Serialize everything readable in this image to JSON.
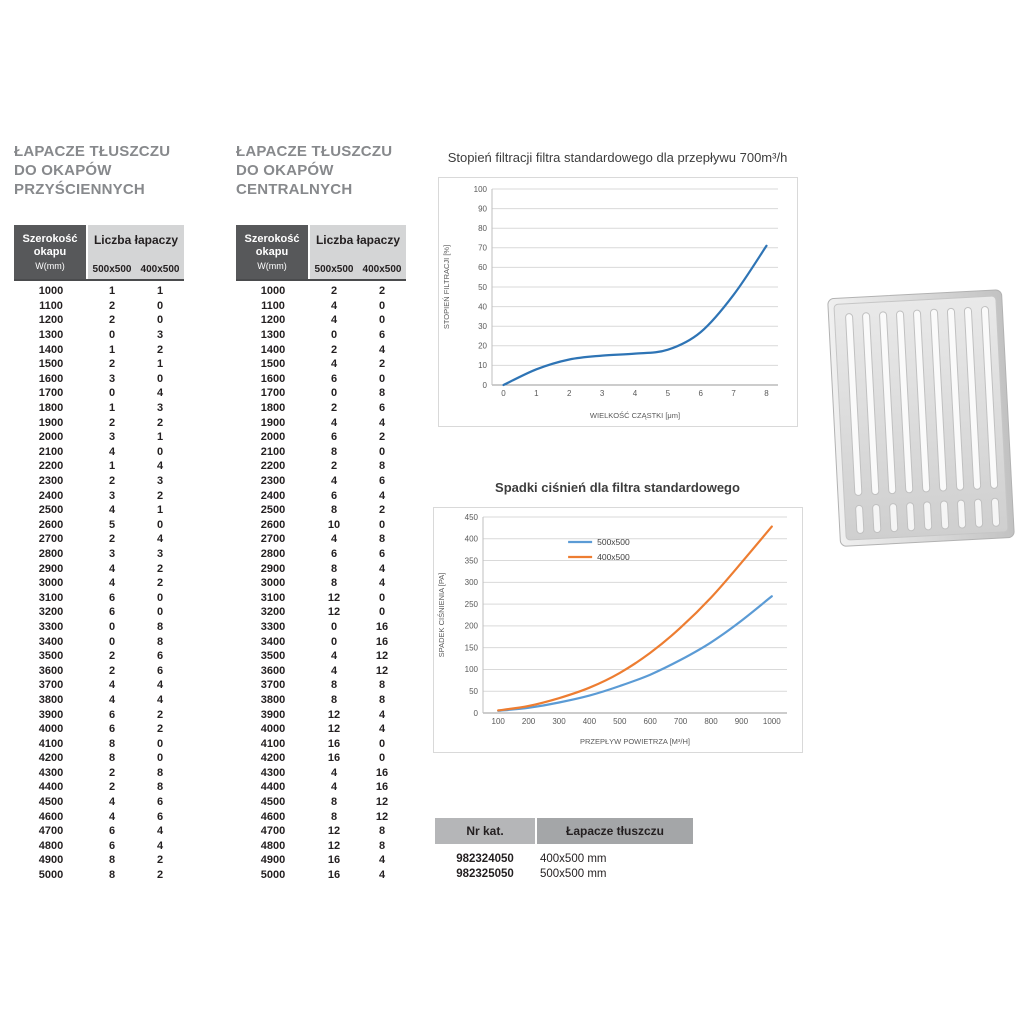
{
  "tables": {
    "wall": {
      "title_lines": [
        "ŁAPACZE TŁUSZCZU",
        "DO OKAPÓW",
        "PRZYŚCIENNYCH"
      ],
      "header": {
        "width_label": "Szerokość okapu",
        "width_unit": "W(mm)",
        "count_label": "Liczba łapaczy",
        "sub1": "500x500",
        "sub2": "400x500"
      },
      "rows": [
        [
          1000,
          1,
          1
        ],
        [
          1100,
          2,
          0
        ],
        [
          1200,
          2,
          0
        ],
        [
          1300,
          0,
          3
        ],
        [
          1400,
          1,
          2
        ],
        [
          1500,
          2,
          1
        ],
        [
          1600,
          3,
          0
        ],
        [
          1700,
          0,
          4
        ],
        [
          1800,
          1,
          3
        ],
        [
          1900,
          2,
          2
        ],
        [
          2000,
          3,
          1
        ],
        [
          2100,
          4,
          0
        ],
        [
          2200,
          1,
          4
        ],
        [
          2300,
          2,
          3
        ],
        [
          2400,
          3,
          2
        ],
        [
          2500,
          4,
          1
        ],
        [
          2600,
          5,
          0
        ],
        [
          2700,
          2,
          4
        ],
        [
          2800,
          3,
          3
        ],
        [
          2900,
          4,
          2
        ],
        [
          3000,
          4,
          2
        ],
        [
          3100,
          6,
          0
        ],
        [
          3200,
          6,
          0
        ],
        [
          3300,
          0,
          8
        ],
        [
          3400,
          0,
          8
        ],
        [
          3500,
          2,
          6
        ],
        [
          3600,
          2,
          6
        ],
        [
          3700,
          4,
          4
        ],
        [
          3800,
          4,
          4
        ],
        [
          3900,
          6,
          2
        ],
        [
          4000,
          6,
          2
        ],
        [
          4100,
          8,
          0
        ],
        [
          4200,
          8,
          0
        ],
        [
          4300,
          2,
          8
        ],
        [
          4400,
          2,
          8
        ],
        [
          4500,
          4,
          6
        ],
        [
          4600,
          4,
          6
        ],
        [
          4700,
          6,
          4
        ],
        [
          4800,
          6,
          4
        ],
        [
          4900,
          8,
          2
        ],
        [
          5000,
          8,
          2
        ]
      ]
    },
    "central": {
      "title_lines": [
        "ŁAPACZE TŁUSZCZU",
        "DO OKAPÓW",
        "CENTRALNYCH"
      ],
      "header": {
        "width_label": "Szerokość okapu",
        "width_unit": "W(mm)",
        "count_label": "Liczba łapaczy",
        "sub1": "500x500",
        "sub2": "400x500"
      },
      "rows": [
        [
          1000,
          2,
          2
        ],
        [
          1100,
          4,
          0
        ],
        [
          1200,
          4,
          0
        ],
        [
          1300,
          0,
          6
        ],
        [
          1400,
          2,
          4
        ],
        [
          1500,
          4,
          2
        ],
        [
          1600,
          6,
          0
        ],
        [
          1700,
          0,
          8
        ],
        [
          1800,
          2,
          6
        ],
        [
          1900,
          4,
          4
        ],
        [
          2000,
          6,
          2
        ],
        [
          2100,
          8,
          0
        ],
        [
          2200,
          2,
          8
        ],
        [
          2300,
          4,
          6
        ],
        [
          2400,
          6,
          4
        ],
        [
          2500,
          8,
          2
        ],
        [
          2600,
          10,
          0
        ],
        [
          2700,
          4,
          8
        ],
        [
          2800,
          6,
          6
        ],
        [
          2900,
          8,
          4
        ],
        [
          3000,
          8,
          4
        ],
        [
          3100,
          12,
          0
        ],
        [
          3200,
          12,
          0
        ],
        [
          3300,
          0,
          16
        ],
        [
          3400,
          0,
          16
        ],
        [
          3500,
          4,
          12
        ],
        [
          3600,
          4,
          12
        ],
        [
          3700,
          8,
          8
        ],
        [
          3800,
          8,
          8
        ],
        [
          3900,
          12,
          4
        ],
        [
          4000,
          12,
          4
        ],
        [
          4100,
          16,
          0
        ],
        [
          4200,
          16,
          0
        ],
        [
          4300,
          4,
          16
        ],
        [
          4400,
          4,
          16
        ],
        [
          4500,
          8,
          12
        ],
        [
          4600,
          8,
          12
        ],
        [
          4700,
          12,
          8
        ],
        [
          4800,
          12,
          8
        ],
        [
          4900,
          16,
          4
        ],
        [
          5000,
          16,
          4
        ]
      ]
    }
  },
  "chart_data": [
    {
      "type": "line",
      "title": "Stopień filtracji filtra standardowego dla przepływu 700m³/h",
      "xlabel": "WIELKOŚĆ CZĄSTKI [μm]",
      "ylabel": "STOPIEŃ FILTRACJI [%]",
      "x": [
        0,
        1,
        2,
        3,
        4,
        5,
        6,
        7,
        8
      ],
      "values": [
        0,
        8,
        13,
        15,
        16,
        18,
        27,
        46,
        71
      ],
      "color": "#2e74b5",
      "xlim": [
        0,
        8
      ],
      "ylim": [
        0,
        100
      ],
      "ytick": 10,
      "pad": 0.35,
      "grid": true,
      "legend": false
    },
    {
      "type": "line",
      "title": "Spadki ciśnień dla filtra standardowego",
      "xlabel": "PRZEPŁYW POWIETRZA [M³/H]",
      "ylabel": "SPADEK CIŚNIENIA [PA]",
      "x": [
        100,
        200,
        300,
        400,
        500,
        600,
        700,
        800,
        900,
        1000
      ],
      "series": [
        {
          "name": "500x500",
          "color": "#5b9bd5",
          "values": [
            5,
            12,
            24,
            40,
            62,
            88,
            122,
            162,
            212,
            268
          ]
        },
        {
          "name": "400x500",
          "color": "#ed7d31",
          "values": [
            6,
            16,
            34,
            58,
            92,
            138,
            196,
            265,
            345,
            428
          ]
        }
      ],
      "xlim": [
        100,
        1000
      ],
      "ylim": [
        0,
        450
      ],
      "ytick": 50,
      "pad": 0.5,
      "grid": true,
      "legend": true,
      "legend_position": "top"
    }
  ],
  "catalog": {
    "headers": [
      "Nr kat.",
      "Łapacze tłuszczu"
    ],
    "rows": [
      [
        "982324050",
        "400x500 mm"
      ],
      [
        "982325050",
        "500x500 mm"
      ]
    ]
  },
  "colors": {
    "header_dark": "#57585a",
    "header_light": "#d4d5d6",
    "chart1_line": "#2e74b5",
    "chart2_blue": "#5b9bd5",
    "chart2_orange": "#ed7d31"
  }
}
